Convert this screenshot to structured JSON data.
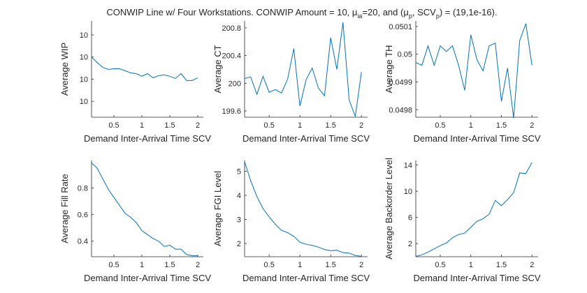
{
  "figure": {
    "title_parts": [
      {
        "text": "CONWIP Line w/ Four Workstations.  CONWIP Amount = 10, μ",
        "sub": false
      },
      {
        "text": "ia",
        "sub": true
      },
      {
        "text": "=20, and (μ",
        "sub": false
      },
      {
        "text": "p",
        "sub": true
      },
      {
        "text": ", SCV",
        "sub": false
      },
      {
        "text": "p",
        "sub": true
      },
      {
        "text": ") = (19,1e-16).",
        "sub": false
      }
    ]
  },
  "chart_data": [
    {
      "type": "line",
      "xlabel": "Demand Inter-Arrival Time SCV",
      "ylabel": "Average WIP",
      "color": "#0072bd",
      "x": [
        0.1,
        0.2,
        0.3,
        0.4,
        0.5,
        0.6,
        0.7,
        0.8,
        0.9,
        1,
        1.1,
        1.2,
        1.3,
        1.4,
        1.5,
        1.6,
        1.7,
        1.8,
        1.9,
        2
      ],
      "values": [
        10.001,
        10.00075,
        10.00053,
        10.00044,
        10.00047,
        10.00047,
        10.00038,
        10.00028,
        10.00025,
        10.00013,
        10.00025,
        10.00006,
        10.00016,
        10.00019,
        10.00013,
        10.00003,
        10.00025,
        9.99994,
        9.99994,
        10.00006
      ],
      "xlim": [
        0.1,
        2.1
      ],
      "xticks": [
        0.5,
        1,
        1.5,
        2
      ],
      "ylim": [
        9.99828,
        10.00263
      ],
      "yticks": [
        {
          "value": 9.999,
          "label": "10"
        },
        10,
        {
          "value": 10.001,
          "label": "10"
        },
        {
          "value": 10.002,
          "label": "10"
        }
      ]
    },
    {
      "type": "line",
      "xlabel": "Demand Inter-Arrival Time SCV",
      "ylabel": "Average CT",
      "color": "#0072bd",
      "x": [
        0.1,
        0.2,
        0.3,
        0.4,
        0.5,
        0.6,
        0.7,
        0.8,
        0.9,
        1,
        1.1,
        1.2,
        1.3,
        1.4,
        1.5,
        1.6,
        1.7,
        1.8,
        1.9,
        2
      ],
      "values": [
        200.07,
        200.09,
        199.84,
        200.1,
        199.87,
        199.91,
        199.86,
        200.06,
        200.5,
        199.67,
        200.05,
        200.22,
        199.93,
        199.82,
        200.66,
        200.2,
        200.88,
        199.76,
        199.52,
        200.16
      ],
      "xlim": [
        0.1,
        2.1
      ],
      "xticks": [
        0.5,
        1,
        1.5,
        2
      ],
      "ylim": [
        199.51,
        200.9
      ],
      "yticks": [
        199.6,
        200,
        200.4,
        200.8
      ]
    },
    {
      "type": "line",
      "xlabel": "Demand Inter-Arrival Time SCV",
      "ylabel": "Average TH",
      "color": "#0072bd",
      "x": [
        0.1,
        0.2,
        0.3,
        0.4,
        0.5,
        0.6,
        0.7,
        0.8,
        0.9,
        1,
        1.1,
        1.2,
        1.3,
        1.4,
        1.5,
        1.6,
        1.7,
        1.8,
        1.9,
        2
      ],
      "values": [
        0.04997,
        0.04996,
        0.05003,
        0.04996,
        0.05003,
        0.05001,
        0.05003,
        0.04996,
        0.04987,
        0.05007,
        0.04998,
        0.04994,
        0.05003,
        0.05004,
        0.04983,
        0.04995,
        0.04977,
        0.05005,
        0.05011,
        0.04996
      ],
      "xlim": [
        0.1,
        2.1
      ],
      "xticks": [
        0.5,
        1,
        1.5,
        2
      ],
      "ylim": [
        0.049773,
        0.05012
      ],
      "yticks": [
        0.0498,
        0.0499,
        0.05,
        0.0501
      ]
    },
    {
      "type": "line",
      "xlabel": "Demand Inter-Arrival Time SCV",
      "ylabel": "Average Fill Rate",
      "color": "#0072bd",
      "x": [
        0.1,
        0.2,
        0.3,
        0.4,
        0.5,
        0.6,
        0.7,
        0.8,
        0.9,
        1,
        1.1,
        1.2,
        1.3,
        1.4,
        1.5,
        1.6,
        1.7,
        1.8,
        1.9,
        2
      ],
      "values": [
        0.99,
        0.95,
        0.87,
        0.79,
        0.73,
        0.67,
        0.61,
        0.58,
        0.54,
        0.48,
        0.45,
        0.42,
        0.4,
        0.36,
        0.37,
        0.34,
        0.34,
        0.3,
        0.29,
        0.29
      ],
      "xlim": [
        0.1,
        2.1
      ],
      "xticks": [
        0.5,
        1,
        1.5,
        2
      ],
      "ylim": [
        0.283,
        1.008
      ],
      "yticks": [
        0.4,
        0.6,
        0.8
      ]
    },
    {
      "type": "line",
      "xlabel": "Demand Inter-Arrival Time SCV",
      "ylabel": "Average FGI Level",
      "color": "#0072bd",
      "x": [
        0.1,
        0.2,
        0.3,
        0.4,
        0.5,
        0.6,
        0.7,
        0.8,
        0.9,
        1,
        1.1,
        1.2,
        1.3,
        1.4,
        1.5,
        1.6,
        1.7,
        1.8,
        1.9,
        2
      ],
      "values": [
        5.4,
        4.6,
        3.95,
        3.45,
        3.1,
        2.8,
        2.55,
        2.45,
        2.3,
        2.05,
        1.97,
        1.92,
        1.85,
        1.75,
        1.7,
        1.72,
        1.62,
        1.6,
        1.5,
        1.47
      ],
      "xlim": [
        0.1,
        2.1
      ],
      "xticks": [
        0.5,
        1,
        1.5,
        2
      ],
      "ylim": [
        1.45,
        5.45
      ],
      "yticks": [
        2,
        3,
        4,
        5
      ]
    },
    {
      "type": "line",
      "xlabel": "Demand Inter-Arrival Time SCV",
      "ylabel": "Average Backorder Level",
      "color": "#0072bd",
      "x": [
        0.1,
        0.2,
        0.3,
        0.4,
        0.5,
        0.6,
        0.7,
        0.8,
        0.9,
        1,
        1.1,
        1.2,
        1.3,
        1.4,
        1.5,
        1.6,
        1.7,
        1.8,
        1.9,
        2
      ],
      "values": [
        0.05,
        0.3,
        0.7,
        1.2,
        1.7,
        2.1,
        2.9,
        3.4,
        3.6,
        4.5,
        5.4,
        5.8,
        6.5,
        8.6,
        7.8,
        8.7,
        9.8,
        12.8,
        12.7,
        14.4
      ],
      "xlim": [
        0.1,
        2.1
      ],
      "xticks": [
        0.5,
        1,
        1.5,
        2
      ],
      "ylim": [
        0,
        14.7
      ],
      "yticks": [
        2,
        6,
        10,
        14
      ]
    }
  ]
}
